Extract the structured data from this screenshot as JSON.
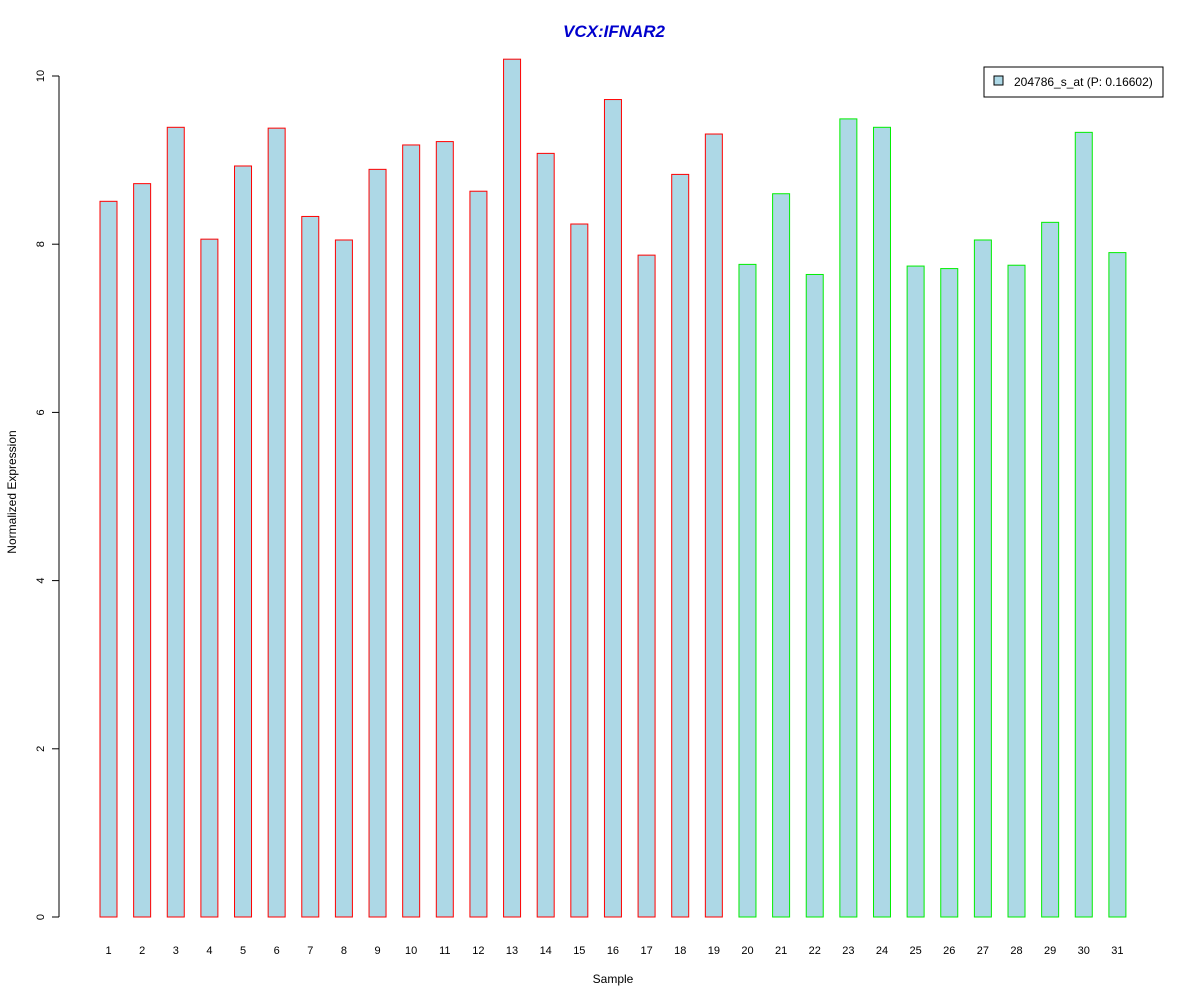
{
  "chart_data": {
    "type": "bar",
    "title": "VCX:IFNAR2",
    "xlabel": "Sample",
    "ylabel": "Normalized Expression",
    "categories": [
      "1",
      "2",
      "3",
      "4",
      "5",
      "6",
      "7",
      "8",
      "9",
      "10",
      "11",
      "12",
      "13",
      "14",
      "15",
      "16",
      "17",
      "18",
      "19",
      "20",
      "21",
      "22",
      "23",
      "24",
      "25",
      "26",
      "27",
      "28",
      "29",
      "30",
      "31"
    ],
    "series": [
      {
        "name": "204786_s_at (P: 0.16602)",
        "values": [
          8.51,
          8.72,
          9.39,
          8.06,
          8.93,
          9.38,
          8.33,
          8.05,
          8.89,
          9.18,
          9.22,
          8.63,
          10.2,
          9.08,
          8.24,
          9.72,
          7.87,
          8.83,
          9.31,
          7.76,
          8.6,
          7.64,
          9.49,
          9.39,
          7.74,
          7.71,
          8.05,
          7.75,
          8.26,
          9.33,
          7.9
        ]
      }
    ],
    "groups": [
      {
        "from": 1,
        "to": 19,
        "edge_color": "#ff0000"
      },
      {
        "from": 20,
        "to": 31,
        "edge_color": "#00ee00"
      }
    ],
    "ylim": [
      0,
      10.2
    ],
    "yticks": [
      0,
      2,
      4,
      6,
      8,
      10
    ],
    "grid": false,
    "legend_position": "top-right",
    "colors": {
      "bar_fill": "#add8e6",
      "title": "#0000cd",
      "axis": "#000000"
    }
  }
}
